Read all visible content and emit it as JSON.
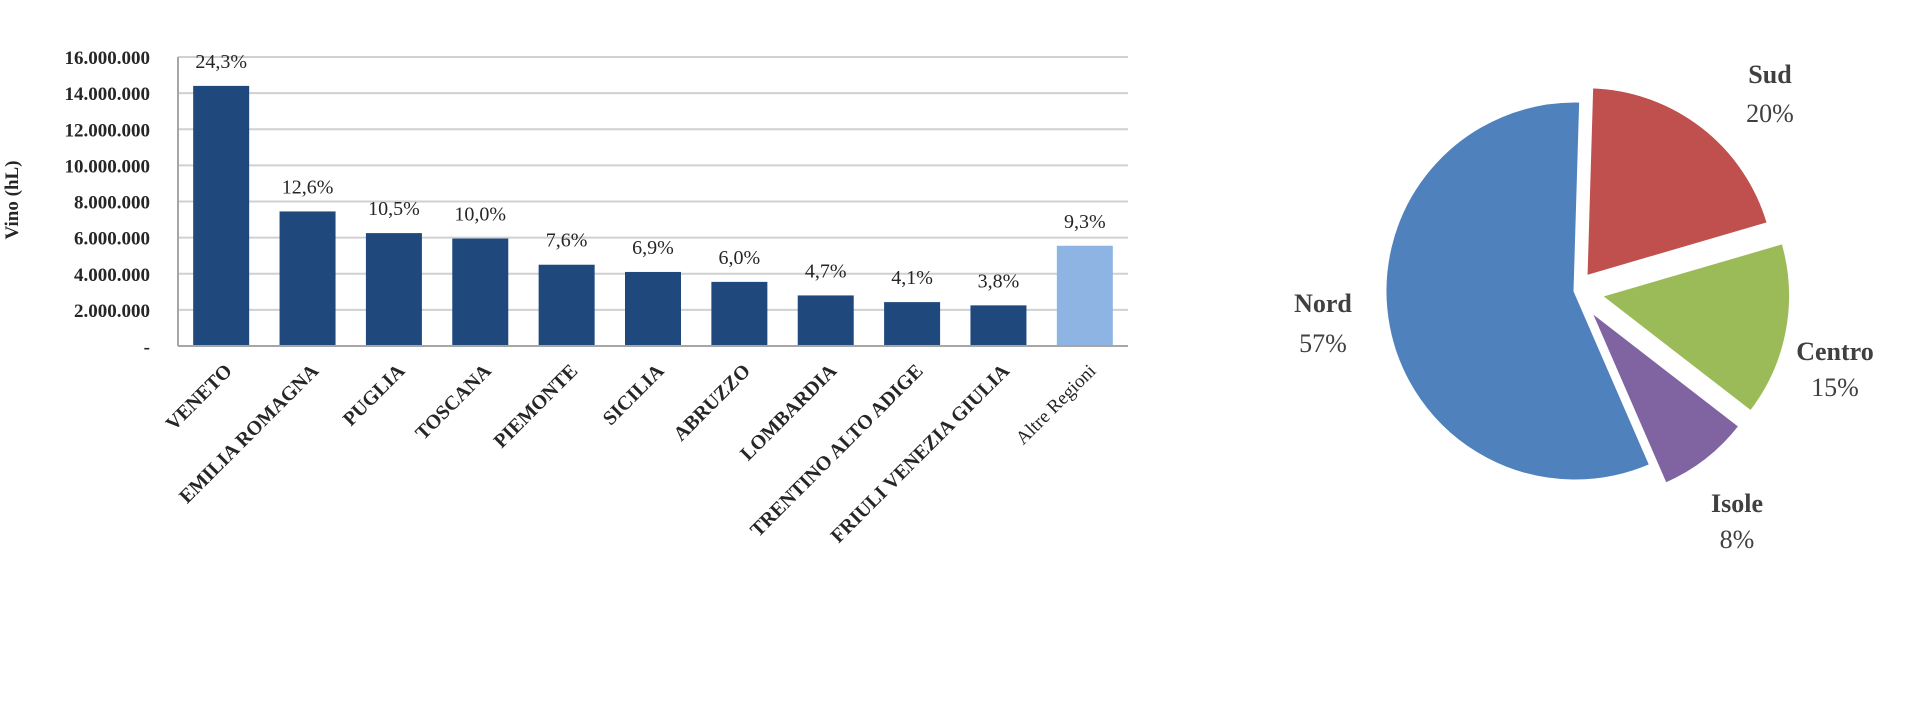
{
  "chart_data": [
    {
      "type": "bar",
      "ylabel": "Vino (hL)",
      "ylim": [
        0,
        16000000
      ],
      "yticks": [
        0,
        2000000,
        4000000,
        6000000,
        8000000,
        10000000,
        12000000,
        14000000,
        16000000
      ],
      "ytick_labels": [
        "-",
        "2.000.000",
        "4.000.000",
        "6.000.000",
        "8.000.000",
        "10.000.000",
        "12.000.000",
        "14.000.000",
        "16.000.000"
      ],
      "grid": true,
      "categories": [
        "VENETO",
        "EMILIA ROMAGNA",
        "PUGLIA",
        "TOSCANA",
        "PIEMONTE",
        "SICILIA",
        "ABRUZZO",
        "LOMBARDIA",
        "TRENTINO ALTO ADIGE",
        "FRIULI VENEZIA GIULIA",
        "Altre Regioni"
      ],
      "values": [
        14400000,
        7450000,
        6250000,
        5950000,
        4500000,
        4100000,
        3550000,
        2800000,
        2430000,
        2250000,
        5550000
      ],
      "data_labels": [
        "24,3%",
        "12,6%",
        "10,5%",
        "10,0%",
        "7,6%",
        "6,9%",
        "6,0%",
        "4,7%",
        "4,1%",
        "3,8%",
        "9,3%"
      ],
      "colors": {
        "main": "#1f497d",
        "highlight": "#8db4e2"
      },
      "highlight_index": 10
    },
    {
      "type": "pie",
      "slices": [
        {
          "name": "Nord",
          "value": 57,
          "label": "57%",
          "color": "#4f81bd"
        },
        {
          "name": "Sud",
          "value": 20,
          "label": "20%",
          "color": "#c0504d"
        },
        {
          "name": "Centro",
          "value": 15,
          "label": "15%",
          "color": "#9bbb59"
        },
        {
          "name": "Isole",
          "value": 8,
          "label": "8%",
          "color": "#8064a2"
        }
      ]
    }
  ]
}
